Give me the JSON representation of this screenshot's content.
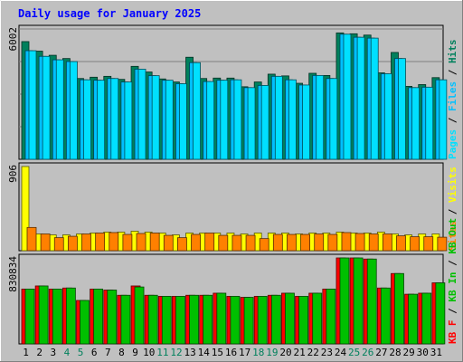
{
  "chart_data": {
    "type": "bar",
    "title": "Daily usage for January 2025",
    "categories": [
      "1",
      "2",
      "3",
      "4",
      "5",
      "6",
      "7",
      "8",
      "9",
      "10",
      "11",
      "12",
      "13",
      "14",
      "15",
      "16",
      "17",
      "18",
      "19",
      "20",
      "21",
      "22",
      "23",
      "24",
      "25",
      "26",
      "27",
      "28",
      "29",
      "30",
      "31"
    ],
    "weekend_days": [
      "4",
      "5",
      "11",
      "12",
      "18",
      "19",
      "25",
      "26"
    ],
    "panels": [
      {
        "max_label": "6002",
        "ylim": [
          0,
          6002
        ],
        "legend": [
          "Pages",
          "Files",
          "Hits"
        ],
        "series": [
          {
            "name": "Hits",
            "color": "#00805C",
            "values": [
              5420,
              4980,
              4790,
              4640,
              3720,
              3780,
              3820,
              3680,
              4280,
              4020,
              3700,
              3560,
              4700,
              3720,
              3740,
              3740,
              3340,
              3560,
              3920,
              3840,
              3500,
              3960,
              3860,
              5820,
              5780,
              5720,
              3980,
              4920,
              3360,
              3440,
              3760
            ]
          },
          {
            "name": "Files",
            "color": "#00C0FF",
            "values": [
              5000,
              4740,
              4580,
              4500,
              3660,
              3640,
              3720,
              3560,
              4150,
              3850,
              3640,
              3480,
              4450,
              3580,
              3640,
              3660,
              3300,
              3400,
              3820,
              3660,
              3420,
              3860,
              3720,
              5760,
              5620,
              5580,
              3940,
              4640,
              3300,
              3320,
              3660
            ]
          },
          {
            "name": "Pages",
            "color": "#00E0FF",
            "values": [
              5000,
              4740,
              4580,
              4500,
              3660,
              3640,
              3720,
              3560,
              4150,
              3850,
              3640,
              3480,
              4450,
              3580,
              3640,
              3660,
              3300,
              3400,
              3820,
              3660,
              3420,
              3860,
              3720,
              5760,
              5620,
              5580,
              3940,
              4640,
              3300,
              3320,
              3660
            ]
          }
        ]
      },
      {
        "max_label": "906",
        "ylim": [
          0,
          906
        ],
        "legend": [
          "Sites",
          "Visits"
        ],
        "series": [
          {
            "name": "Visits",
            "color": "#FFFF00",
            "values": [
              906,
              180,
              170,
              170,
              180,
              190,
              200,
              200,
              210,
              200,
              190,
              170,
              190,
              190,
              190,
              190,
              180,
              190,
              190,
              190,
              180,
              190,
              190,
              200,
              190,
              190,
              200,
              180,
              170,
              180,
              180
            ]
          },
          {
            "name": "Sites",
            "color": "#FF8000",
            "values": [
              250,
              180,
              140,
              155,
              180,
              190,
              195,
              175,
              185,
              190,
              165,
              140,
              175,
              190,
              165,
              165,
              165,
              130,
              175,
              175,
              175,
              180,
              175,
              195,
              185,
              180,
              180,
              160,
              150,
              150,
              145
            ]
          }
        ]
      },
      {
        "max_label": "830834",
        "ylim": [
          0,
          830834
        ],
        "legend": [
          "KB F",
          "KB In",
          "KB Out"
        ],
        "series": [
          {
            "name": "KB F",
            "color": "#FF0000",
            "values": [
              530000,
              560000,
              530000,
              540000,
              420000,
              530000,
              520000,
              470000,
              560000,
              470000,
              460000,
              460000,
              470000,
              470000,
              490000,
              460000,
              450000,
              460000,
              470000,
              490000,
              460000,
              490000,
              530000,
              850000,
              840000,
              820000,
              540000,
              680000,
              480000,
              490000,
              590000
            ]
          },
          {
            "name": "KB In",
            "color": "#00C000",
            "values": [
              530000,
              560000,
              530000,
              540000,
              420000,
              530000,
              520000,
              470000,
              550000,
              470000,
              460000,
              460000,
              470000,
              470000,
              490000,
              460000,
              450000,
              460000,
              470000,
              490000,
              460000,
              490000,
              530000,
              830834,
              830834,
              820000,
              540000,
              680000,
              480000,
              490000,
              590000
            ]
          },
          {
            "name": "KB Out",
            "color": "#00C000",
            "values": []
          }
        ]
      }
    ]
  }
}
